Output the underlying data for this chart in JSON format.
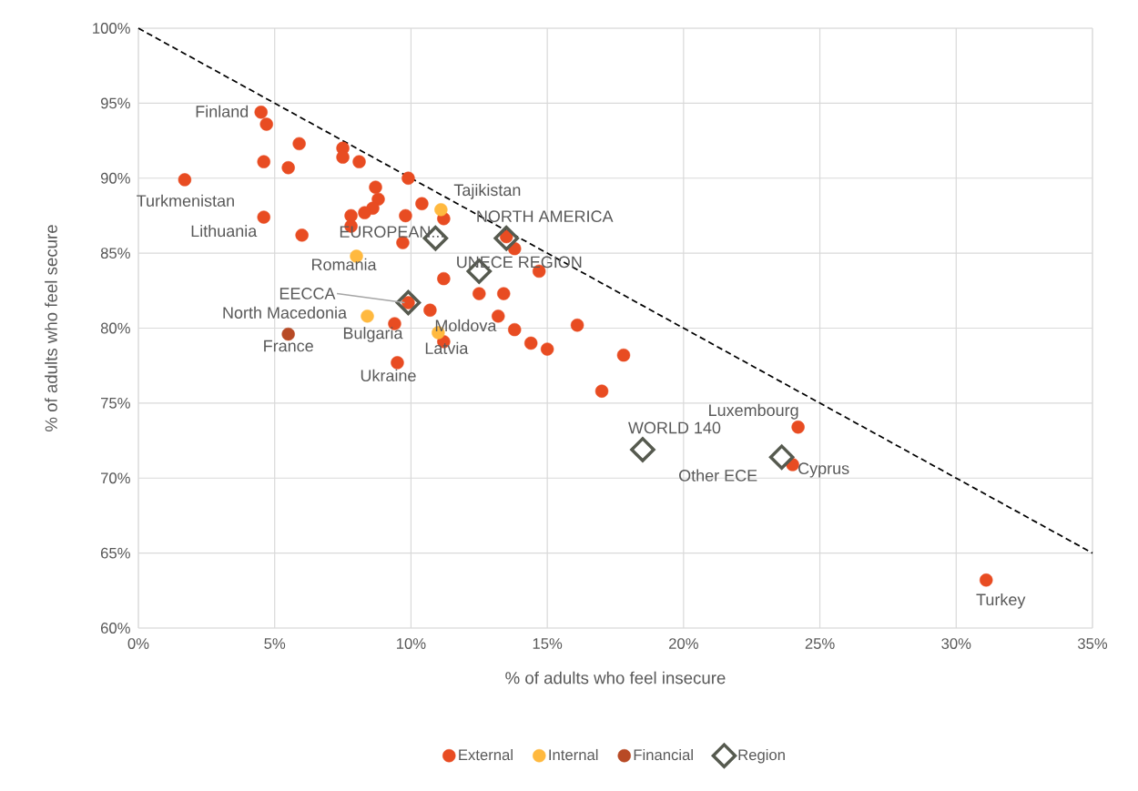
{
  "chart_data": {
    "type": "scatter",
    "xlabel": "% of adults who feel insecure",
    "ylabel": "% of adults who feel secure",
    "xlim": [
      0,
      35
    ],
    "ylim": [
      60,
      100
    ],
    "xticks": [
      {
        "value": 0,
        "label": "0%"
      },
      {
        "value": 5,
        "label": "5%"
      },
      {
        "value": 10,
        "label": "10%"
      },
      {
        "value": 15,
        "label": "15%"
      },
      {
        "value": 20,
        "label": "20%"
      },
      {
        "value": 25,
        "label": "25%"
      },
      {
        "value": 30,
        "label": "30%"
      },
      {
        "value": 35,
        "label": "35%"
      }
    ],
    "yticks": [
      {
        "value": 60,
        "label": "60%"
      },
      {
        "value": 65,
        "label": "65%"
      },
      {
        "value": 70,
        "label": "70%"
      },
      {
        "value": 75,
        "label": "75%"
      },
      {
        "value": 80,
        "label": "80%"
      },
      {
        "value": 85,
        "label": "85%"
      },
      {
        "value": 90,
        "label": "90%"
      },
      {
        "value": 95,
        "label": "95%"
      },
      {
        "value": 100,
        "label": "100%"
      }
    ],
    "grid": true,
    "legend": "bottom",
    "series": [
      {
        "name": "External",
        "color": "#e84c22",
        "marker": "circle",
        "x": [
          4.5,
          4.7,
          5.9,
          4.6,
          5.5,
          7.5,
          7.5,
          8.1,
          9.9,
          1.7,
          8.7,
          8.8,
          10.4,
          8.6,
          8.3,
          7.8,
          7.8,
          9.8,
          11.2,
          4.6,
          6.0,
          9.7,
          13.5,
          13.8,
          14.7,
          11.2,
          12.5,
          13.4,
          10.7,
          13.2,
          13.8,
          16.1,
          9.4,
          14.4,
          15.0,
          17.8,
          11.2,
          9.5,
          17.0,
          24.2,
          24.0,
          31.1,
          9.9
        ],
        "values": [
          94.4,
          93.6,
          92.3,
          91.1,
          90.7,
          92.0,
          91.4,
          91.1,
          90.0,
          89.9,
          89.4,
          88.6,
          88.3,
          88.0,
          87.7,
          87.5,
          86.8,
          87.5,
          87.3,
          87.4,
          86.2,
          85.7,
          86.1,
          85.3,
          83.8,
          83.3,
          82.3,
          82.3,
          81.2,
          80.8,
          79.9,
          80.2,
          80.3,
          79.0,
          78.6,
          78.2,
          79.1,
          77.7,
          75.8,
          73.4,
          70.9,
          63.2,
          81.7
        ]
      },
      {
        "name": "Internal",
        "color": "#ffb93f",
        "marker": "circle",
        "x": [
          11.1,
          8.0,
          8.4,
          11.0
        ],
        "values": [
          87.9,
          84.8,
          80.8,
          79.7
        ]
      },
      {
        "name": "Financial",
        "color": "#b84a25",
        "marker": "circle",
        "x": [
          5.5
        ],
        "values": [
          79.6
        ]
      },
      {
        "name": "Region",
        "color": "#565a4f",
        "marker": "diamond",
        "x": [
          10.9,
          13.5,
          12.5,
          9.9,
          18.5,
          23.6
        ],
        "values": [
          86.0,
          86.0,
          83.8,
          81.7,
          71.9,
          71.4
        ]
      },
      {
        "type": "line",
        "color": "#000000",
        "marker": "none",
        "line_style": "dashed",
        "x": [
          0,
          35
        ],
        "values": [
          100,
          65
        ]
      }
    ],
    "annotations": [
      {
        "text": "Finland",
        "x": 4.5,
        "y": 94.4
      },
      {
        "text": "Turkmenistan",
        "x": 1.7,
        "y": 89.9
      },
      {
        "text": "Lithuania",
        "x": 4.6,
        "y": 87.4
      },
      {
        "text": "Tajikistan",
        "x": 11.1,
        "y": 87.9
      },
      {
        "text": "EUROPEAN...",
        "x": 10.9,
        "y": 86.0
      },
      {
        "text": "NORTH AMERICA",
        "x": 13.5,
        "y": 86.0
      },
      {
        "text": "Romania",
        "x": 8.0,
        "y": 84.8
      },
      {
        "text": "UNECE REGION",
        "x": 12.5,
        "y": 83.8
      },
      {
        "text": "EECCA",
        "x": 9.9,
        "y": 81.7
      },
      {
        "text": "North Macedonia",
        "x": 8.4,
        "y": 80.8
      },
      {
        "text": "France",
        "x": 5.5,
        "y": 79.6
      },
      {
        "text": "Bulgaria",
        "x": 9.4,
        "y": 80.3
      },
      {
        "text": "Moldova",
        "x": 11.0,
        "y": 79.7
      },
      {
        "text": "Latvia",
        "x": 11.2,
        "y": 79.1
      },
      {
        "text": "Ukraine",
        "x": 9.5,
        "y": 77.7
      },
      {
        "text": "Luxembourg",
        "x": 24.2,
        "y": 73.4
      },
      {
        "text": "WORLD 140",
        "x": 18.5,
        "y": 71.9
      },
      {
        "text": "Other ECE",
        "x": 23.6,
        "y": 71.4
      },
      {
        "text": "Cyprus",
        "x": 24.0,
        "y": 70.9
      },
      {
        "text": "Turkey",
        "x": 31.1,
        "y": 63.2
      }
    ]
  }
}
